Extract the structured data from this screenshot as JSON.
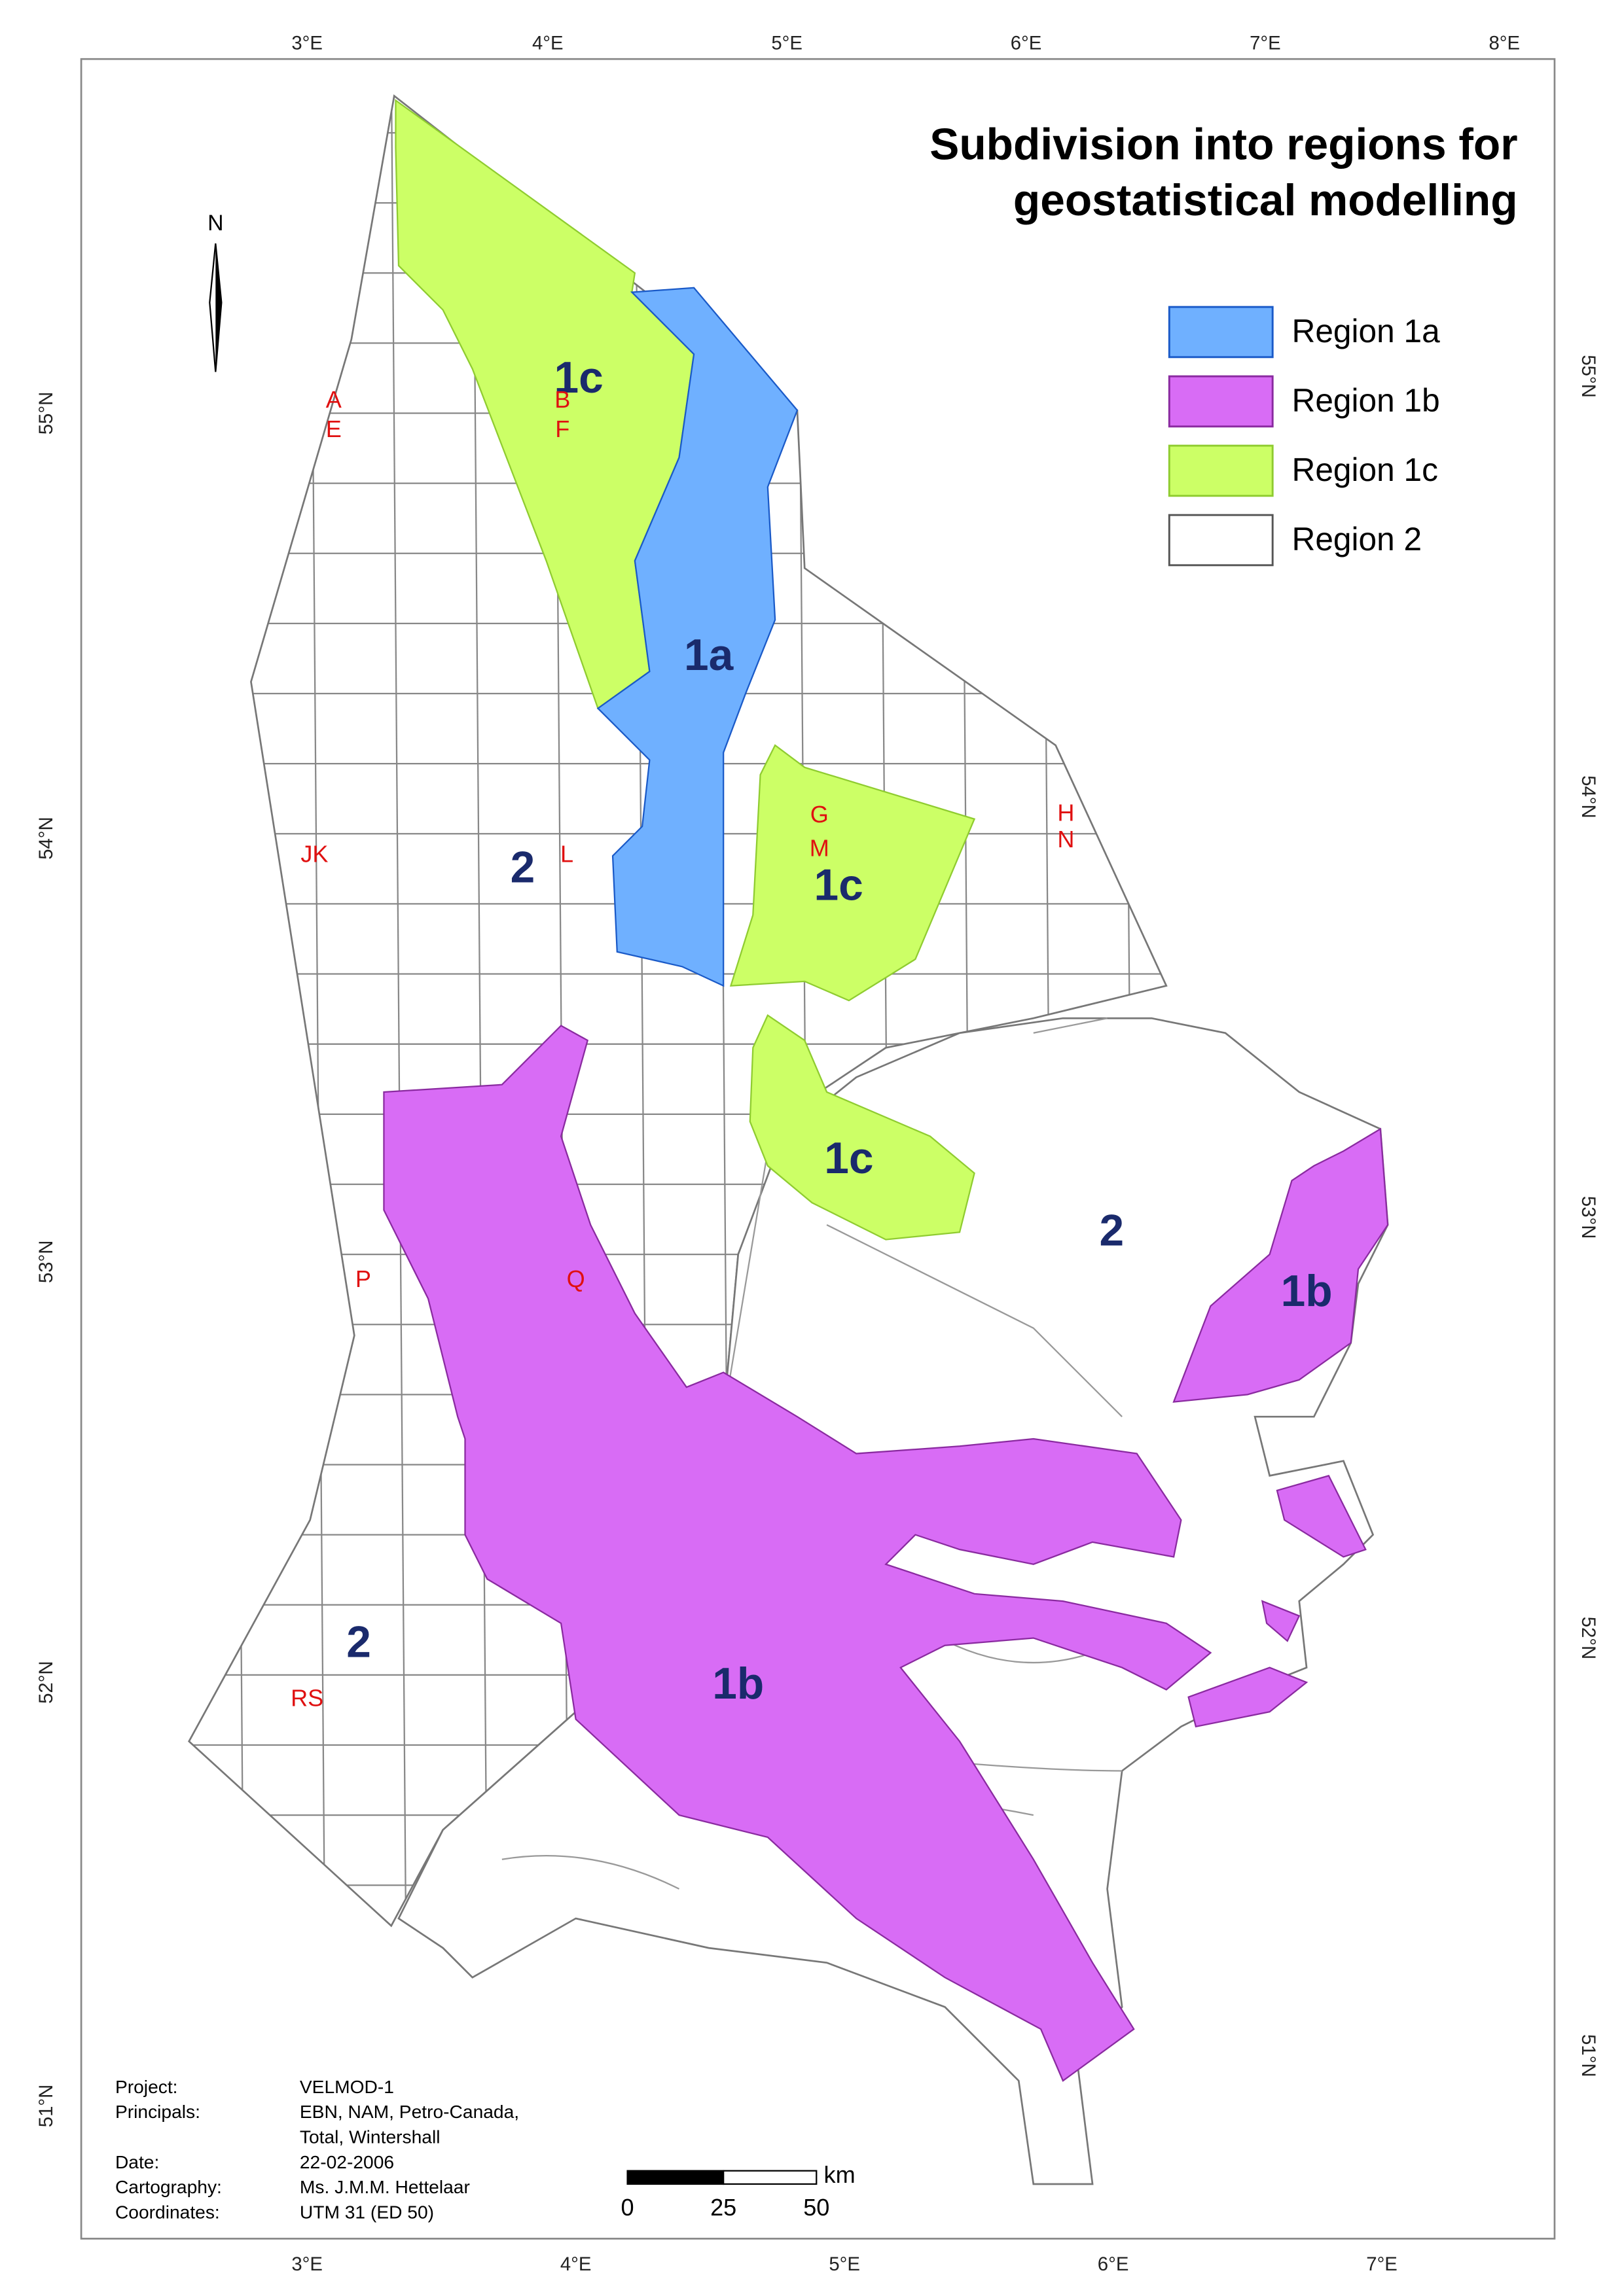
{
  "title": {
    "line1": "Subdivision into regions for",
    "line2": "geostatistical modelling"
  },
  "legend": [
    {
      "label": "Region 1a",
      "color": "#6fb0ff",
      "stroke": "#1a5ac8"
    },
    {
      "label": "Region 1b",
      "color": "#d86cf5",
      "stroke": "#8a2aa0"
    },
    {
      "label": "Region 1c",
      "color": "#ccff66",
      "stroke": "#8fcc30"
    },
    {
      "label": "Region 2",
      "color": "#ffffff",
      "stroke": "#555555"
    }
  ],
  "north_label": "N",
  "axis_top": [
    "3°E",
    "4°E",
    "5°E",
    "6°E",
    "7°E",
    "8°E"
  ],
  "axis_bottom": [
    "3°E",
    "4°E",
    "5°E",
    "6°E",
    "7°E"
  ],
  "axis_left": [
    "55°N",
    "54°N",
    "53°N",
    "52°N",
    "51°N"
  ],
  "axis_right": [
    "55°N",
    "54°N",
    "53°N",
    "52°N",
    "51°N"
  ],
  "region_labels": [
    "1c",
    "1a",
    "2",
    "1c",
    "1c",
    "2",
    "1b",
    "2",
    "1b"
  ],
  "block_labels": [
    "A",
    "E",
    "B",
    "F",
    "G",
    "M",
    "H",
    "N",
    "JK",
    "L",
    "P",
    "Q",
    "RS"
  ],
  "info": {
    "labels": [
      "Project:",
      "Principals:",
      "Date:",
      "Cartography:",
      "Coordinates:"
    ],
    "values": [
      "VELMOD-1",
      "EBN, NAM, Petro-Canada,",
      "Total, Wintershall",
      "22-02-2006",
      "Ms. J.M.M. Hettelaar",
      "UTM 31 (ED 50)"
    ]
  },
  "scale_bar": {
    "unit": "km",
    "labels": [
      "0",
      "25",
      "50"
    ]
  }
}
